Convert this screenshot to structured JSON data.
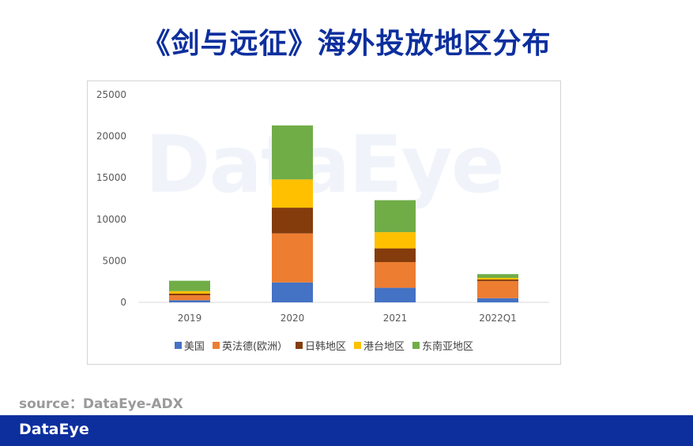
{
  "title": "《剑与远征》海外投放地区分布",
  "watermark": "DataEye",
  "source": "source：DataEye-ADX",
  "footer": {
    "logo": "DataEye"
  },
  "chart_data": {
    "type": "bar",
    "stacked": true,
    "title": "",
    "xlabel": "",
    "ylabel": "",
    "ylim": [
      0,
      25000
    ],
    "yticks": [
      "0",
      "5000",
      "10000",
      "15000",
      "20000",
      "25000"
    ],
    "grid": false,
    "legend_position": "bottom",
    "categories": [
      "2019",
      "2020",
      "2021",
      "2022Q1"
    ],
    "series": [
      {
        "name": "美国",
        "color": "#4472c4",
        "values": [
          250,
          2400,
          1750,
          500
        ]
      },
      {
        "name": "英法德(欧洲）",
        "color": "#ed7d31",
        "values": [
          600,
          5900,
          3100,
          2050
        ]
      },
      {
        "name": "日韩地区",
        "color": "#843c0c",
        "values": [
          200,
          3100,
          1650,
          200
        ]
      },
      {
        "name": "港台地区",
        "color": "#ffc000",
        "values": [
          300,
          3400,
          1950,
          200
        ]
      },
      {
        "name": "东南亚地区",
        "color": "#70ad47",
        "values": [
          1250,
          6500,
          3850,
          450
        ]
      }
    ]
  }
}
